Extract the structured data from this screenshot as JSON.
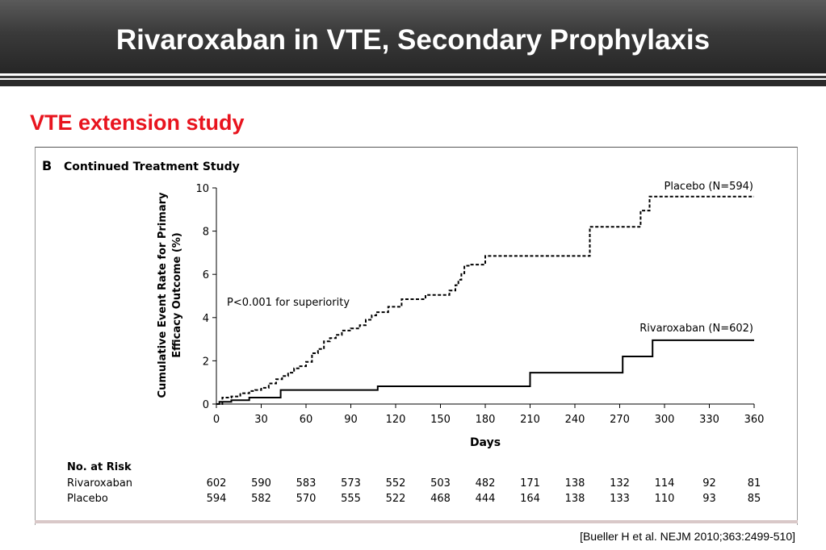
{
  "header": {
    "title": "Rivaroxaban in VTE, Secondary Prophylaxis"
  },
  "subtitle": "VTE extension study",
  "citation": "[Bueller H et al. NEJM 2010;363:2499-510]",
  "colors": {
    "title_bar": "#333333",
    "subtitle": "#e8141e",
    "series": "#000000"
  },
  "chart_data": {
    "type": "line",
    "panel_letter": "B",
    "title": "Continued Treatment Study",
    "xlabel": "Days",
    "ylabel": "Cumulative Event Rate for Primary Efficacy Outcome (%)",
    "ylabel_lines": [
      "Cumulative Event Rate for Primary",
      "Efficacy Outcome (%)"
    ],
    "xlim": [
      0,
      360
    ],
    "ylim": [
      0,
      10
    ],
    "xticks": [
      0,
      30,
      60,
      90,
      120,
      150,
      180,
      210,
      240,
      270,
      300,
      330,
      360
    ],
    "yticks": [
      0,
      2,
      4,
      6,
      8,
      10
    ],
    "grid": false,
    "annotation": "P<0.001 for superiority",
    "series": [
      {
        "name": "Placebo (N=594)",
        "style": "dashed",
        "x": [
          0,
          4,
          10,
          16,
          22,
          26,
          30,
          35,
          40,
          44,
          48,
          52,
          56,
          60,
          64,
          68,
          72,
          76,
          80,
          84,
          90,
          96,
          100,
          104,
          107,
          115,
          124,
          140,
          156,
          160,
          162,
          164,
          166,
          170,
          180,
          235,
          250,
          260,
          284,
          290,
          298,
          360
        ],
        "y": [
          0,
          0.3,
          0.35,
          0.5,
          0.6,
          0.65,
          0.75,
          0.95,
          1.15,
          1.3,
          1.45,
          1.65,
          1.75,
          1.95,
          2.35,
          2.55,
          2.9,
          3.05,
          3.2,
          3.4,
          3.5,
          3.65,
          3.9,
          4.1,
          4.25,
          4.5,
          4.85,
          5.05,
          5.25,
          5.5,
          5.75,
          6.05,
          6.4,
          6.45,
          6.85,
          6.85,
          8.2,
          8.2,
          8.95,
          9.6,
          9.6,
          9.6
        ]
      },
      {
        "name": "Rivaroxaban (N=602)",
        "style": "solid",
        "x": [
          0,
          2,
          10,
          22,
          43,
          108,
          210,
          272,
          292,
          360
        ],
        "y": [
          0,
          0.1,
          0.18,
          0.3,
          0.65,
          0.82,
          1.45,
          2.2,
          2.95,
          2.95
        ]
      }
    ],
    "risk_table": {
      "heading": "No. at Risk",
      "days": [
        0,
        30,
        60,
        90,
        120,
        150,
        180,
        210,
        240,
        270,
        300,
        330,
        360
      ],
      "rows": [
        {
          "label": "Rivaroxaban",
          "values": [
            602,
            590,
            583,
            573,
            552,
            503,
            482,
            171,
            138,
            132,
            114,
            92,
            81
          ]
        },
        {
          "label": "Placebo",
          "values": [
            594,
            582,
            570,
            555,
            522,
            468,
            444,
            164,
            138,
            133,
            110,
            93,
            85
          ]
        }
      ]
    }
  }
}
